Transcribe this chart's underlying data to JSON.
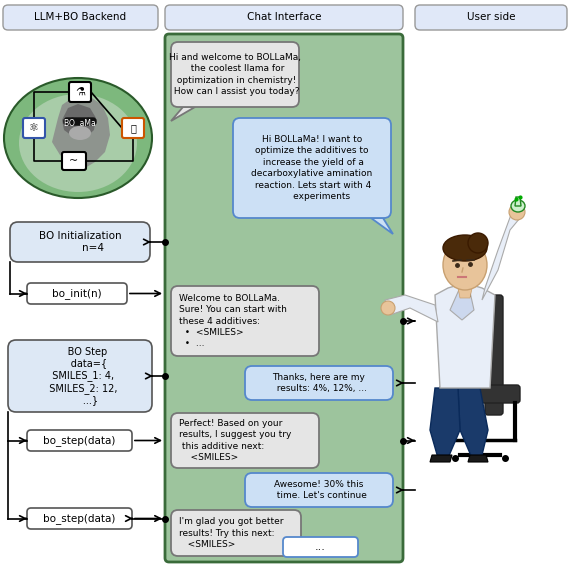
{
  "title_llm_bo": "LLM+BO Backend",
  "title_chat": "Chat Interface",
  "title_user": "User side",
  "chat_bg_color": "#9dc49d",
  "chat_border_color": "#3a6b3a",
  "box_bg_light": "#dde8f5",
  "box_bg_white": "#ffffff",
  "box_border": "#555555",
  "llm_bubble_bg": "#e8e8e8",
  "llm_bubble_border": "#666666",
  "user_bubble_bg": "#cce0f5",
  "user_bubble_border": "#5588cc",
  "msg1": "Hi and welcome to BOLLaMa,\n  the coolest llama for\n optimization in chemistry!\n How can I assist you today?",
  "msg2": "Hi BOLLaMa! I want to\noptimize the additives to\n increase the yield of a\ndecarboxylative amination\n reaction. Lets start with 4\n       experiments",
  "msg3": "Welcome to BOLLaMa.\nSure! You can start with\nthese 4 additives:\n  •  <SMILES>\n  •  ...",
  "msg4": "Thanks, here are my\n  results: 4%, 12%, ...",
  "msg5": "Perfect! Based on your\nresults, I suggest you try\n this additive next:\n    <SMILES>",
  "msg6": "Awesome! 30% this\n  time. Let's continue",
  "msg7": "I'm glad you got better\nresults! Try this next:\n   <SMILES>",
  "bo_init_label": "BO Initialization\n        n=4",
  "bo_init_fn": "bo_init(n)",
  "bo_step_label": "     BO Step\n      data={\n  SMILES_1: 4,\n  SMILES_2: 12,\n       ...}",
  "bo_step_fn1": "bo_step(data)",
  "bo_step_fn2": "bo_step(data)",
  "background_color": "#ffffff",
  "header_box_bg": "#e0e8f8",
  "header_box_border": "#999999",
  "llama_circle_color": "#7db87d",
  "llama_circle_inner": "#a8cca8"
}
